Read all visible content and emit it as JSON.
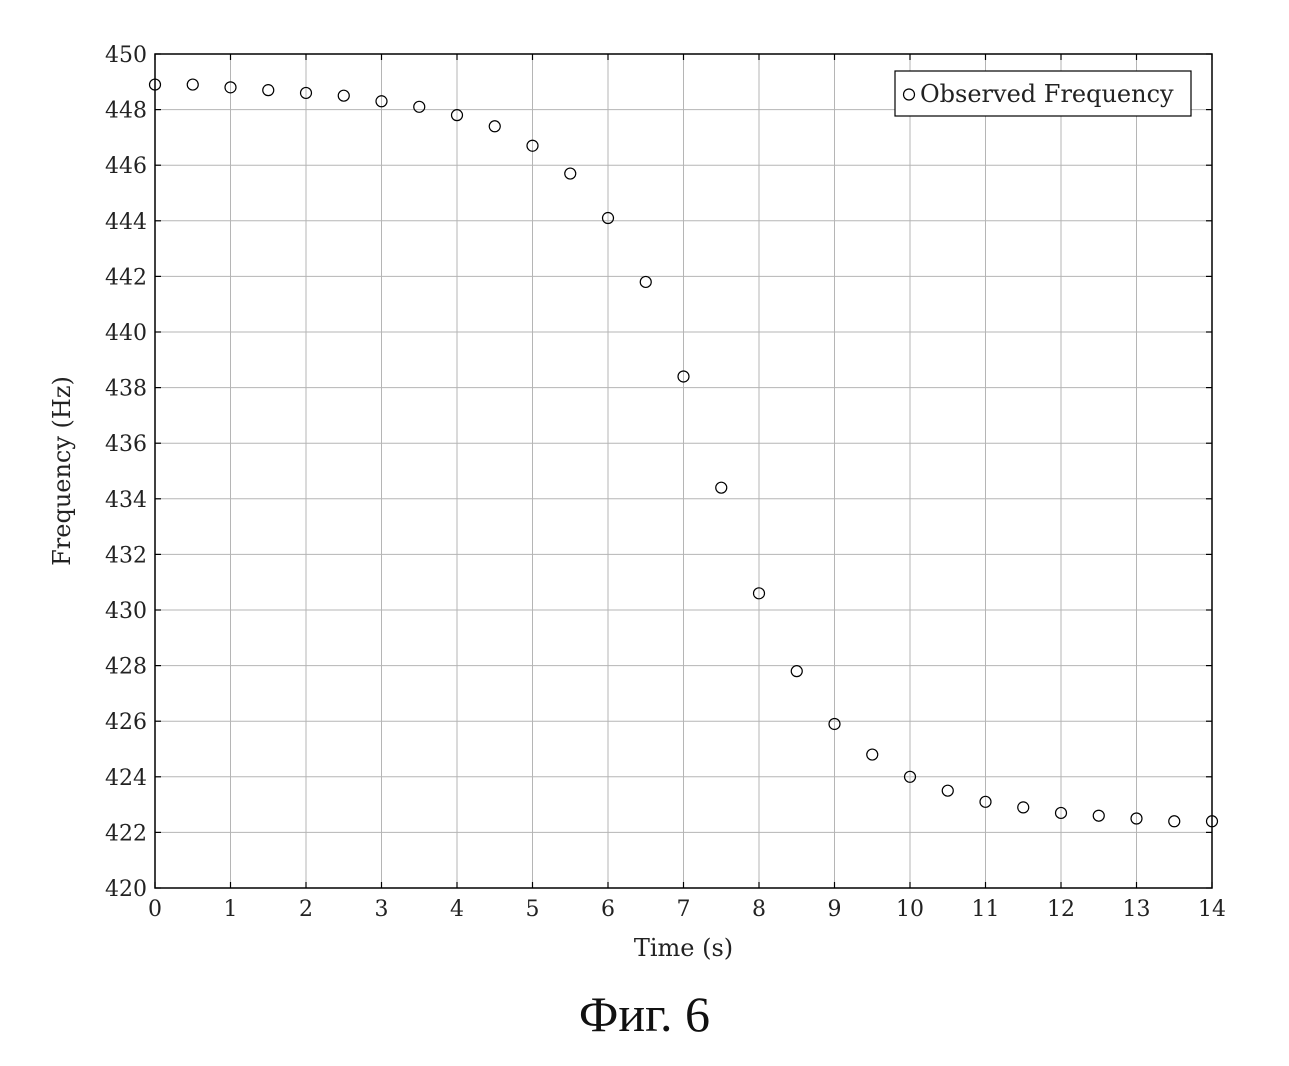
{
  "caption": "Фиг. 6",
  "chart_data": {
    "type": "scatter",
    "title": "",
    "xlabel": "Time (s)",
    "ylabel": "Frequency (Hz)",
    "xlim": [
      0,
      14
    ],
    "ylim": [
      420,
      450
    ],
    "xticks": [
      0,
      1,
      2,
      3,
      4,
      5,
      6,
      7,
      8,
      9,
      10,
      11,
      12,
      13,
      14
    ],
    "yticks": [
      420,
      422,
      424,
      426,
      428,
      430,
      432,
      434,
      436,
      438,
      440,
      442,
      444,
      446,
      448,
      450
    ],
    "grid": true,
    "legend_position": "top-right",
    "marker": "open-circle",
    "series": [
      {
        "name": "Observed Frequency",
        "x": [
          0,
          0.5,
          1,
          1.5,
          2,
          2.5,
          3,
          3.5,
          4,
          4.5,
          5,
          5.5,
          6,
          6.5,
          7,
          7.5,
          8,
          8.5,
          9,
          9.5,
          10,
          10.5,
          11,
          11.5,
          12,
          12.5,
          13,
          13.5,
          14
        ],
        "y": [
          448.9,
          448.9,
          448.8,
          448.7,
          448.6,
          448.5,
          448.3,
          448.1,
          447.8,
          447.4,
          446.7,
          445.7,
          444.1,
          441.8,
          438.4,
          434.4,
          430.6,
          427.8,
          425.9,
          424.8,
          424.0,
          423.5,
          423.1,
          422.9,
          422.7,
          422.6,
          422.5,
          422.4,
          422.4
        ]
      }
    ]
  }
}
